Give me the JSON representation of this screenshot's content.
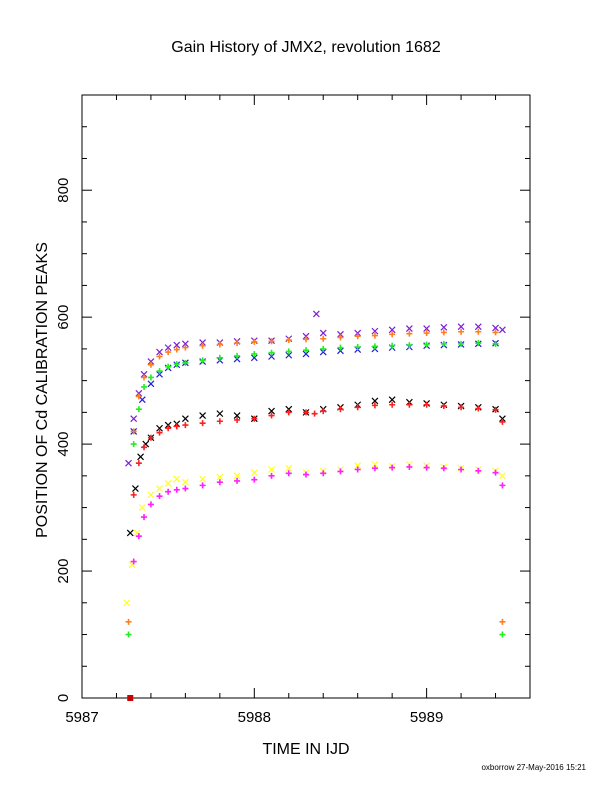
{
  "chart_data": {
    "type": "scatter",
    "title": "Gain History of JMX2, revolution 1682",
    "xlabel": "TIME IN IJD",
    "ylabel": "POSITION OF Cd CALIBRATION PEAKS",
    "footer": "oxborrow 27-May-2016 15:21",
    "xlim": [
      5987,
      5989.6
    ],
    "ylim": [
      0,
      950
    ],
    "x_ticks": [
      5987,
      5988,
      5989
    ],
    "y_ticks": [
      0,
      200,
      400,
      600,
      800
    ],
    "grid": false,
    "series": [
      {
        "color": "#7a1fd6",
        "marker": "x",
        "x": [
          5987.27,
          5987.3,
          5987.33,
          5987.36,
          5987.4,
          5987.45,
          5987.5,
          5987.55,
          5987.6,
          5987.7,
          5987.8,
          5987.9,
          5988.0,
          5988.1,
          5988.2,
          5988.3,
          5988.36,
          5988.4,
          5988.5,
          5988.6,
          5988.7,
          5988.8,
          5988.9,
          5989.0,
          5989.1,
          5989.2,
          5989.3,
          5989.4,
          5989.44
        ],
        "y": [
          370,
          440,
          480,
          510,
          530,
          545,
          552,
          556,
          558,
          560,
          560,
          562,
          563,
          563,
          566,
          570,
          605,
          575,
          573,
          575,
          578,
          580,
          582,
          582,
          584,
          585,
          585,
          583,
          580
        ]
      },
      {
        "color": "#1f1fd6",
        "marker": "x",
        "x": [
          5987.3,
          5987.35,
          5987.4,
          5987.45,
          5987.5,
          5987.55,
          5987.6,
          5987.7,
          5987.8,
          5987.9,
          5988.0,
          5988.1,
          5988.2,
          5988.3,
          5988.4,
          5988.5,
          5988.6,
          5988.7,
          5988.8,
          5988.9,
          5989.0,
          5989.1,
          5989.2,
          5989.3,
          5989.4
        ],
        "y": [
          420,
          470,
          495,
          510,
          520,
          525,
          528,
          530,
          532,
          534,
          536,
          538,
          540,
          542,
          545,
          547,
          549,
          550,
          552,
          553,
          555,
          556,
          557,
          558,
          559
        ]
      },
      {
        "color": "#ff7f1f",
        "marker": "+",
        "x": [
          5987.27,
          5987.3,
          5987.33,
          5987.36,
          5987.4,
          5987.45,
          5987.5,
          5987.55,
          5987.6,
          5987.7,
          5987.8,
          5987.9,
          5988.0,
          5988.1,
          5988.2,
          5988.3,
          5988.4,
          5988.5,
          5988.6,
          5988.7,
          5988.8,
          5988.9,
          5989.0,
          5989.1,
          5989.2,
          5989.3,
          5989.4,
          5989.44
        ],
        "y": [
          120,
          420,
          475,
          505,
          525,
          538,
          545,
          549,
          552,
          555,
          557,
          559,
          561,
          562,
          564,
          565,
          566,
          568,
          570,
          571,
          573,
          574,
          575,
          576,
          577,
          577,
          576,
          120
        ]
      },
      {
        "color": "#22ee22",
        "marker": "+",
        "x": [
          5987.27,
          5987.3,
          5987.33,
          5987.36,
          5987.4,
          5987.45,
          5987.5,
          5987.55,
          5987.6,
          5987.7,
          5987.8,
          5987.9,
          5988.0,
          5988.1,
          5988.2,
          5988.3,
          5988.4,
          5988.5,
          5988.6,
          5988.7,
          5988.8,
          5988.9,
          5989.0,
          5989.1,
          5989.2,
          5989.3,
          5989.4,
          5989.44
        ],
        "y": [
          100,
          400,
          455,
          490,
          505,
          515,
          522,
          526,
          528,
          532,
          536,
          539,
          542,
          544,
          546,
          548,
          550,
          552,
          553,
          554,
          555,
          556,
          557,
          558,
          558,
          559,
          558,
          100
        ]
      },
      {
        "color": "#000000",
        "marker": "x",
        "x": [
          5987.28,
          5987.31,
          5987.34,
          5987.37,
          5987.4,
          5987.45,
          5987.5,
          5987.55,
          5987.6,
          5987.7,
          5987.8,
          5987.9,
          5988.0,
          5988.1,
          5988.2,
          5988.3,
          5988.4,
          5988.5,
          5988.6,
          5988.7,
          5988.8,
          5988.9,
          5989.0,
          5989.1,
          5989.2,
          5989.3,
          5989.4,
          5989.44
        ],
        "y": [
          260,
          330,
          380,
          400,
          410,
          425,
          430,
          432,
          440,
          445,
          448,
          445,
          440,
          452,
          455,
          450,
          455,
          458,
          462,
          468,
          470,
          466,
          464,
          462,
          460,
          458,
          455,
          440
        ]
      },
      {
        "color": "#ff1f1f",
        "marker": "+",
        "x": [
          5987.3,
          5987.33,
          5987.36,
          5987.4,
          5987.45,
          5987.5,
          5987.55,
          5987.6,
          5987.7,
          5987.8,
          5987.9,
          5988.0,
          5988.1,
          5988.2,
          5988.3,
          5988.35,
          5988.4,
          5988.5,
          5988.6,
          5988.7,
          5988.8,
          5988.9,
          5989.0,
          5989.1,
          5989.2,
          5989.3,
          5989.4,
          5989.44
        ],
        "y": [
          320,
          370,
          395,
          410,
          418,
          425,
          428,
          430,
          433,
          436,
          438,
          440,
          445,
          450,
          450,
          448,
          452,
          455,
          458,
          461,
          462,
          462,
          462,
          460,
          458,
          456,
          454,
          435
        ]
      },
      {
        "color": "#ffff1f",
        "marker": "x",
        "x": [
          5987.26,
          5987.29,
          5987.32,
          5987.35,
          5987.4,
          5987.45,
          5987.5,
          5987.55,
          5987.6,
          5987.7,
          5987.8,
          5987.9,
          5988.0,
          5988.1,
          5988.2,
          5988.3,
          5988.4,
          5988.5,
          5988.6,
          5988.7,
          5988.8,
          5988.9,
          5989.0,
          5989.1,
          5989.2,
          5989.3,
          5989.4,
          5989.44
        ],
        "y": [
          150,
          210,
          260,
          300,
          320,
          330,
          338,
          345,
          340,
          345,
          348,
          350,
          355,
          360,
          362,
          355,
          358,
          360,
          366,
          368,
          365,
          368,
          366,
          364,
          362,
          360,
          358,
          350
        ]
      },
      {
        "color": "#ff1fff",
        "marker": "+",
        "x": [
          5987.3,
          5987.33,
          5987.36,
          5987.4,
          5987.45,
          5987.5,
          5987.55,
          5987.6,
          5987.7,
          5987.8,
          5987.9,
          5988.0,
          5988.1,
          5988.2,
          5988.3,
          5988.4,
          5988.5,
          5988.6,
          5988.7,
          5988.8,
          5988.9,
          5989.0,
          5989.1,
          5989.2,
          5989.3,
          5989.4,
          5989.44
        ],
        "y": [
          215,
          255,
          285,
          305,
          318,
          325,
          328,
          330,
          335,
          340,
          342,
          344,
          350,
          354,
          352,
          354,
          357,
          360,
          362,
          363,
          364,
          363,
          362,
          360,
          358,
          355,
          335
        ]
      },
      {
        "color": "#cc0000",
        "marker": "square",
        "x": [
          5987.28
        ],
        "y": [
          0
        ]
      }
    ]
  }
}
